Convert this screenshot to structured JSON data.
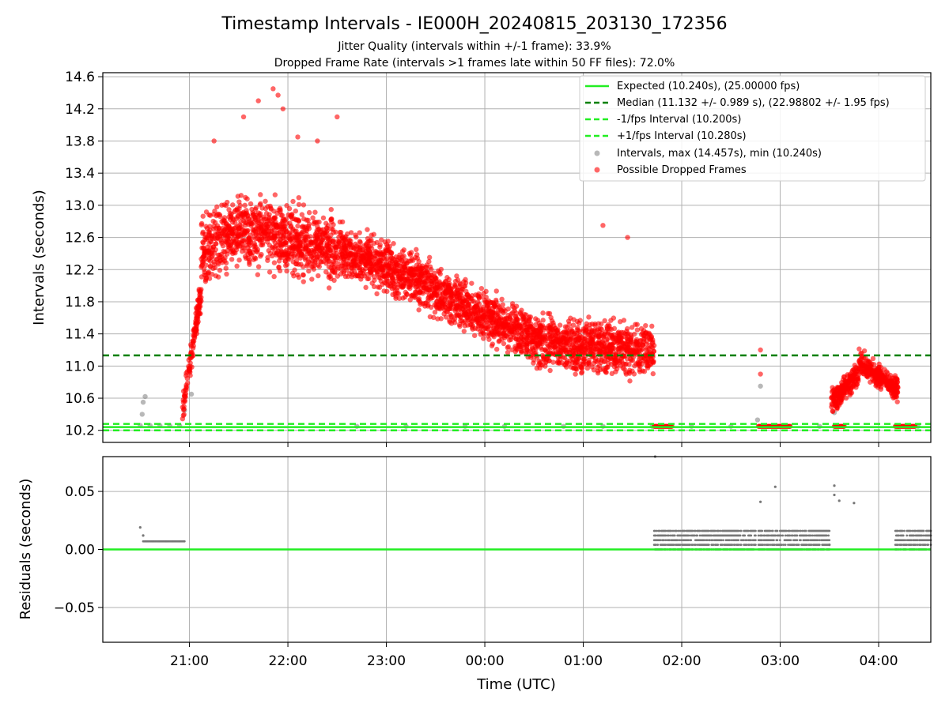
{
  "chart_data": [
    {
      "type": "scatter",
      "title": "Timestamp Intervals - IE000H_20240815_203130_172356",
      "subtitle_1": "Jitter Quality (intervals within +/-1 frame): 33.9%",
      "subtitle_2": "Dropped Frame Rate (intervals >1 frames late within 50 FF files): 72.0%",
      "ylabel": "Intervals (seconds)",
      "ylim": [
        10.05,
        14.65
      ],
      "yticks": [
        "10.2",
        "10.6",
        "11.0",
        "11.4",
        "11.8",
        "12.2",
        "12.6",
        "13.0",
        "13.4",
        "13.8",
        "14.2",
        "14.6"
      ],
      "x_range_hours": [
        20.12,
        28.53
      ],
      "grid": true,
      "legend_position": "upper-right",
      "reference_lines": [
        {
          "label": "Expected (10.240s), (25.00000 fps)",
          "y": 10.24,
          "style": "solid",
          "color": "#22ee22"
        },
        {
          "label": "Median (11.132 +/- 0.989 s), (22.98802 +/- 1.95 fps)",
          "y": 11.132,
          "style": "dashed",
          "color": "#008000"
        },
        {
          "label": "-1/fps Interval (10.200s)",
          "y": 10.2,
          "style": "dashed",
          "color": "#22ee22"
        },
        {
          "label": "+1/fps Interval (10.280s)",
          "y": 10.28,
          "style": "dashed",
          "color": "#22ee22"
        }
      ],
      "series": [
        {
          "name": "Intervals, max (14.457s), min (10.240s)",
          "color": "#888888",
          "points": [
            [
              20.5,
              10.26
            ],
            [
              20.52,
              10.4
            ],
            [
              20.53,
              10.55
            ],
            [
              20.55,
              10.62
            ],
            [
              20.6,
              10.26
            ],
            [
              20.7,
              10.26
            ],
            [
              20.8,
              10.26
            ],
            [
              20.9,
              10.26
            ],
            [
              20.95,
              10.45
            ],
            [
              21.02,
              10.65
            ],
            [
              22.7,
              10.25
            ],
            [
              23.2,
              10.25
            ],
            [
              23.8,
              10.25
            ],
            [
              24.2,
              10.25
            ],
            [
              24.8,
              10.25
            ],
            [
              25.2,
              10.25
            ],
            [
              25.7,
              10.25
            ],
            [
              26.1,
              10.25
            ],
            [
              26.5,
              10.25
            ],
            [
              26.77,
              10.33
            ],
            [
              26.8,
              10.75
            ],
            [
              27.1,
              10.25
            ],
            [
              27.4,
              10.25
            ],
            [
              27.55,
              10.42
            ],
            [
              27.57,
              10.5
            ],
            [
              28.2,
              10.25
            ],
            [
              28.4,
              10.25
            ]
          ]
        },
        {
          "name": "Possible Dropped Frames",
          "color": "#ff0000",
          "segments": [
            {
              "from": 20.93,
              "to": 21.12,
              "y_from": 10.5,
              "y_to": 11.9,
              "spread": 0.25
            },
            {
              "from": 21.12,
              "to": 21.5,
              "y_from": 12.4,
              "y_to": 12.7,
              "spread": 0.55
            },
            {
              "from": 21.5,
              "to": 22.5,
              "y_from": 12.7,
              "y_to": 12.45,
              "spread": 0.6
            },
            {
              "from": 22.5,
              "to": 23.5,
              "y_from": 12.45,
              "y_to": 12.0,
              "spread": 0.45
            },
            {
              "from": 23.5,
              "to": 24.5,
              "y_from": 11.9,
              "y_to": 11.35,
              "spread": 0.42
            },
            {
              "from": 24.5,
              "to": 25.72,
              "y_from": 11.3,
              "y_to": 11.2,
              "spread": 0.45
            },
            {
              "from": 27.52,
              "to": 27.8,
              "y_from": 10.55,
              "y_to": 10.9,
              "spread": 0.22
            },
            {
              "from": 27.8,
              "to": 28.2,
              "y_from": 11.05,
              "y_to": 10.7,
              "spread": 0.2
            }
          ],
          "low_runs": [
            [
              25.72,
              25.9
            ],
            [
              26.78,
              27.1
            ],
            [
              27.55,
              27.65
            ],
            [
              28.17,
              28.37
            ]
          ]
        }
      ]
    },
    {
      "type": "scatter",
      "xlabel": "Time (UTC)",
      "ylabel": "Residuals (seconds)",
      "ylim": [
        -0.08,
        0.08
      ],
      "yticks": [
        "−0.05",
        "0.00",
        "0.05"
      ],
      "xticks": [
        "21:00",
        "22:00",
        "23:00",
        "00:00",
        "01:00",
        "02:00",
        "03:00",
        "04:00"
      ],
      "reference_line": {
        "y": 0.0,
        "color": "#22ee22"
      },
      "series": [
        {
          "name": "Residuals",
          "color": "#777777",
          "runs": [
            {
              "from": 20.53,
              "to": 20.95,
              "y": 0.007
            },
            {
              "from": 25.72,
              "to": 26.75,
              "y": "0.0-0.016"
            },
            {
              "from": 26.78,
              "to": 27.5,
              "y": "0.0-0.016"
            },
            {
              "from": 28.17,
              "to": 28.53,
              "y": "0.0-0.016"
            }
          ],
          "outliers": [
            [
              20.5,
              0.019
            ],
            [
              20.53,
              0.012
            ],
            [
              26.8,
              0.041
            ],
            [
              26.95,
              0.054
            ],
            [
              27.55,
              0.055
            ],
            [
              27.55,
              0.047
            ],
            [
              27.6,
              0.042
            ],
            [
              27.75,
              0.04
            ],
            [
              27.5,
              0.004
            ],
            [
              25.73,
              0.08
            ]
          ]
        }
      ]
    }
  ]
}
